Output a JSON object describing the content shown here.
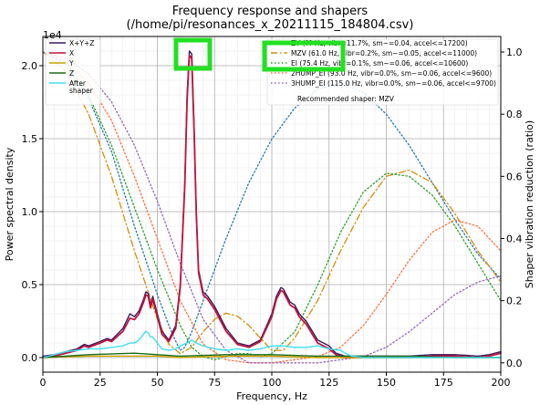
{
  "chart_data": {
    "type": "line",
    "title": "Frequency response and shapers",
    "subtitle": "(/home/pi/resonances_x_20211115_184804.csv)",
    "xlabel": "Frequency, Hz",
    "ylabel": "Power spectral density",
    "y2label": "Shaper vibration reduction (ratio)",
    "y_offset_label": "1e4",
    "xlim": [
      0,
      200
    ],
    "ylim": [
      -0.1,
      2.2
    ],
    "y2lim": [
      -0.03,
      1.05
    ],
    "xticks": [
      "0",
      "25",
      "50",
      "75",
      "100",
      "125",
      "150",
      "175",
      "200"
    ],
    "yticks": [
      "0.0",
      "0.5",
      "1.0",
      "1.5",
      "2.0"
    ],
    "y2ticks": [
      "0.0",
      "0.2",
      "0.4",
      "0.6",
      "0.8",
      "1.0"
    ],
    "grid": true,
    "minor_grid": true,
    "legend_left_position": "top-left",
    "legend_right_position": "top-right",
    "recommended_text": "Recommended shaper: MZV",
    "series": [
      {
        "name": "X+Y+Z",
        "axis": "left",
        "color": "#3b1a5e",
        "style": "solid",
        "x": [
          0,
          5,
          10,
          15,
          18,
          20,
          25,
          28,
          30,
          35,
          38,
          40,
          42,
          44,
          45,
          46,
          47,
          48,
          50,
          52,
          55,
          58,
          60,
          62,
          63,
          64,
          65,
          66,
          67,
          68,
          70,
          72,
          75,
          80,
          85,
          90,
          95,
          100,
          102,
          104,
          105,
          106,
          108,
          110,
          112,
          115,
          120,
          125,
          128,
          130,
          132,
          135,
          140,
          150,
          160,
          170,
          180,
          190,
          195,
          200
        ],
        "y": [
          0.01,
          0.02,
          0.04,
          0.06,
          0.09,
          0.08,
          0.11,
          0.13,
          0.12,
          0.2,
          0.3,
          0.28,
          0.32,
          0.4,
          0.45,
          0.44,
          0.36,
          0.42,
          0.3,
          0.18,
          0.12,
          0.22,
          0.5,
          1.2,
          1.8,
          2.1,
          2.08,
          1.6,
          1.0,
          0.6,
          0.45,
          0.42,
          0.35,
          0.2,
          0.1,
          0.08,
          0.12,
          0.3,
          0.42,
          0.48,
          0.47,
          0.44,
          0.38,
          0.36,
          0.3,
          0.25,
          0.12,
          0.08,
          0.03,
          0.02,
          0.01,
          0.01,
          0.01,
          0.01,
          0.01,
          0.02,
          0.02,
          0.01,
          0.02,
          0.04
        ]
      },
      {
        "name": "X",
        "axis": "left",
        "color": "#c0143c",
        "style": "solid",
        "x": [
          0,
          5,
          10,
          15,
          18,
          20,
          25,
          28,
          30,
          35,
          38,
          40,
          42,
          44,
          45,
          46,
          47,
          48,
          50,
          52,
          55,
          58,
          60,
          62,
          63,
          64,
          65,
          66,
          67,
          68,
          70,
          72,
          75,
          80,
          85,
          90,
          95,
          100,
          102,
          104,
          105,
          106,
          108,
          110,
          112,
          115,
          120,
          125,
          128,
          130,
          132,
          135,
          140,
          150,
          160,
          170,
          180,
          190,
          195,
          200
        ],
        "y": [
          0.0,
          0.01,
          0.03,
          0.05,
          0.08,
          0.07,
          0.1,
          0.12,
          0.11,
          0.18,
          0.27,
          0.26,
          0.3,
          0.38,
          0.43,
          0.42,
          0.34,
          0.4,
          0.28,
          0.16,
          0.11,
          0.2,
          0.48,
          1.18,
          1.76,
          2.07,
          2.05,
          1.57,
          0.98,
          0.58,
          0.43,
          0.4,
          0.33,
          0.18,
          0.09,
          0.07,
          0.11,
          0.28,
          0.4,
          0.46,
          0.45,
          0.42,
          0.36,
          0.34,
          0.28,
          0.23,
          0.1,
          0.06,
          0.02,
          0.01,
          0.0,
          0.0,
          0.0,
          0.0,
          0.0,
          0.01,
          0.01,
          0.0,
          0.01,
          0.03
        ]
      },
      {
        "name": "Y",
        "axis": "left",
        "color": "#c8a000",
        "style": "solid",
        "x": [
          0,
          20,
          40,
          50,
          60,
          80,
          100,
          120,
          140,
          160,
          180,
          200
        ],
        "y": [
          0.0,
          0.01,
          0.01,
          0.01,
          0.0,
          0.01,
          0.01,
          0.0,
          0.0,
          0.0,
          0.0,
          0.0
        ]
      },
      {
        "name": "Z",
        "axis": "left",
        "color": "#1a6b1a",
        "style": "solid",
        "x": [
          0,
          20,
          40,
          50,
          60,
          80,
          100,
          120,
          140,
          160,
          180,
          200
        ],
        "y": [
          0.0,
          0.02,
          0.03,
          0.02,
          0.01,
          0.02,
          0.02,
          0.01,
          0.01,
          0.01,
          0.0,
          0.0
        ]
      },
      {
        "name": "After shaper",
        "axis": "left",
        "color": "#3de0f0",
        "style": "solid",
        "x": [
          0,
          5,
          10,
          15,
          20,
          25,
          30,
          35,
          38,
          40,
          42,
          44,
          45,
          46,
          47,
          48,
          50,
          52,
          55,
          58,
          60,
          63,
          65,
          67,
          70,
          75,
          80,
          85,
          90,
          95,
          100,
          105,
          110,
          115,
          120,
          125,
          130,
          132,
          135,
          140,
          150,
          160,
          180,
          200
        ],
        "y": [
          0.0,
          0.02,
          0.04,
          0.05,
          0.06,
          0.06,
          0.07,
          0.08,
          0.1,
          0.1,
          0.12,
          0.16,
          0.18,
          0.17,
          0.14,
          0.14,
          0.1,
          0.06,
          0.05,
          0.06,
          0.08,
          0.1,
          0.12,
          0.1,
          0.08,
          0.06,
          0.05,
          0.06,
          0.05,
          0.06,
          0.08,
          0.08,
          0.07,
          0.07,
          0.08,
          0.06,
          0.05,
          0.03,
          0.01,
          0.0,
          0.0,
          0.0,
          0.0,
          0.0
        ]
      },
      {
        "name": "ZV (?? Hz, vibr=11.7%, sm~=0.04, accel<=17200)",
        "axis": "right",
        "color": "#1f77b4",
        "style": "dotted",
        "x": [
          0,
          10,
          20,
          30,
          40,
          50,
          55,
          58,
          60,
          62,
          65,
          70,
          80,
          90,
          100,
          110,
          120,
          130,
          140,
          150,
          160,
          170,
          180,
          190,
          200
        ],
        "y": [
          1.0,
          0.96,
          0.85,
          0.68,
          0.44,
          0.22,
          0.12,
          0.07,
          0.04,
          0.05,
          0.1,
          0.2,
          0.4,
          0.58,
          0.72,
          0.82,
          0.88,
          0.9,
          0.87,
          0.8,
          0.7,
          0.58,
          0.46,
          0.35,
          0.27
        ]
      },
      {
        "name": "MZV (61.0 Hz, vibr=0.2%, sm~=0.05, accel<=11000)",
        "axis": "right",
        "color": "#d98b0a",
        "style": "dashdot",
        "x": [
          0,
          10,
          20,
          30,
          40,
          50,
          55,
          60,
          65,
          70,
          75,
          80,
          85,
          90,
          95,
          100,
          105,
          110,
          120,
          130,
          140,
          150,
          160,
          170,
          180,
          190,
          200
        ],
        "y": [
          1.0,
          0.94,
          0.8,
          0.6,
          0.36,
          0.14,
          0.06,
          0.03,
          0.05,
          0.1,
          0.14,
          0.16,
          0.15,
          0.12,
          0.08,
          0.04,
          0.04,
          0.08,
          0.2,
          0.36,
          0.5,
          0.6,
          0.62,
          0.58,
          0.48,
          0.36,
          0.26
        ]
      },
      {
        "name": "EI (75.4 Hz, vibr=0.1%, sm~=0.06, accel<=10600)",
        "axis": "right",
        "color": "#2ca02c",
        "style": "dotted",
        "x": [
          0,
          10,
          20,
          30,
          40,
          50,
          60,
          65,
          70,
          75,
          80,
          85,
          90,
          95,
          100,
          110,
          120,
          130,
          140,
          150,
          160,
          170,
          180,
          190,
          200
        ],
        "y": [
          1.0,
          0.97,
          0.86,
          0.7,
          0.5,
          0.3,
          0.12,
          0.05,
          0.02,
          0.01,
          0.02,
          0.03,
          0.03,
          0.02,
          0.03,
          0.1,
          0.25,
          0.42,
          0.55,
          0.61,
          0.6,
          0.54,
          0.44,
          0.32,
          0.2
        ]
      },
      {
        "name": "2HUMP_EI (93.0 Hz, vibr=0.0%, sm~=0.06, accel<=9600)",
        "axis": "right",
        "color": "#ff6f3c",
        "style": "dotted",
        "x": [
          0,
          10,
          20,
          30,
          40,
          50,
          60,
          70,
          80,
          90,
          100,
          110,
          120,
          130,
          140,
          150,
          160,
          170,
          180,
          190,
          200
        ],
        "y": [
          1.0,
          0.97,
          0.9,
          0.78,
          0.6,
          0.4,
          0.2,
          0.06,
          0.01,
          0.0,
          0.0,
          0.01,
          0.02,
          0.05,
          0.12,
          0.22,
          0.33,
          0.42,
          0.46,
          0.44,
          0.36
        ]
      },
      {
        "name": "3HUMP_EI (115.0 Hz, vibr=0.0%, sm~=0.06, accel<=9700)",
        "axis": "right",
        "color": "#9467bd",
        "style": "dotted",
        "x": [
          0,
          10,
          20,
          30,
          40,
          50,
          60,
          70,
          80,
          90,
          100,
          110,
          120,
          130,
          140,
          150,
          160,
          170,
          180,
          190,
          200
        ],
        "y": [
          1.0,
          0.98,
          0.93,
          0.84,
          0.7,
          0.52,
          0.32,
          0.14,
          0.04,
          0.0,
          0.0,
          0.0,
          0.0,
          0.01,
          0.02,
          0.05,
          0.1,
          0.16,
          0.22,
          0.26,
          0.28
        ]
      }
    ]
  }
}
